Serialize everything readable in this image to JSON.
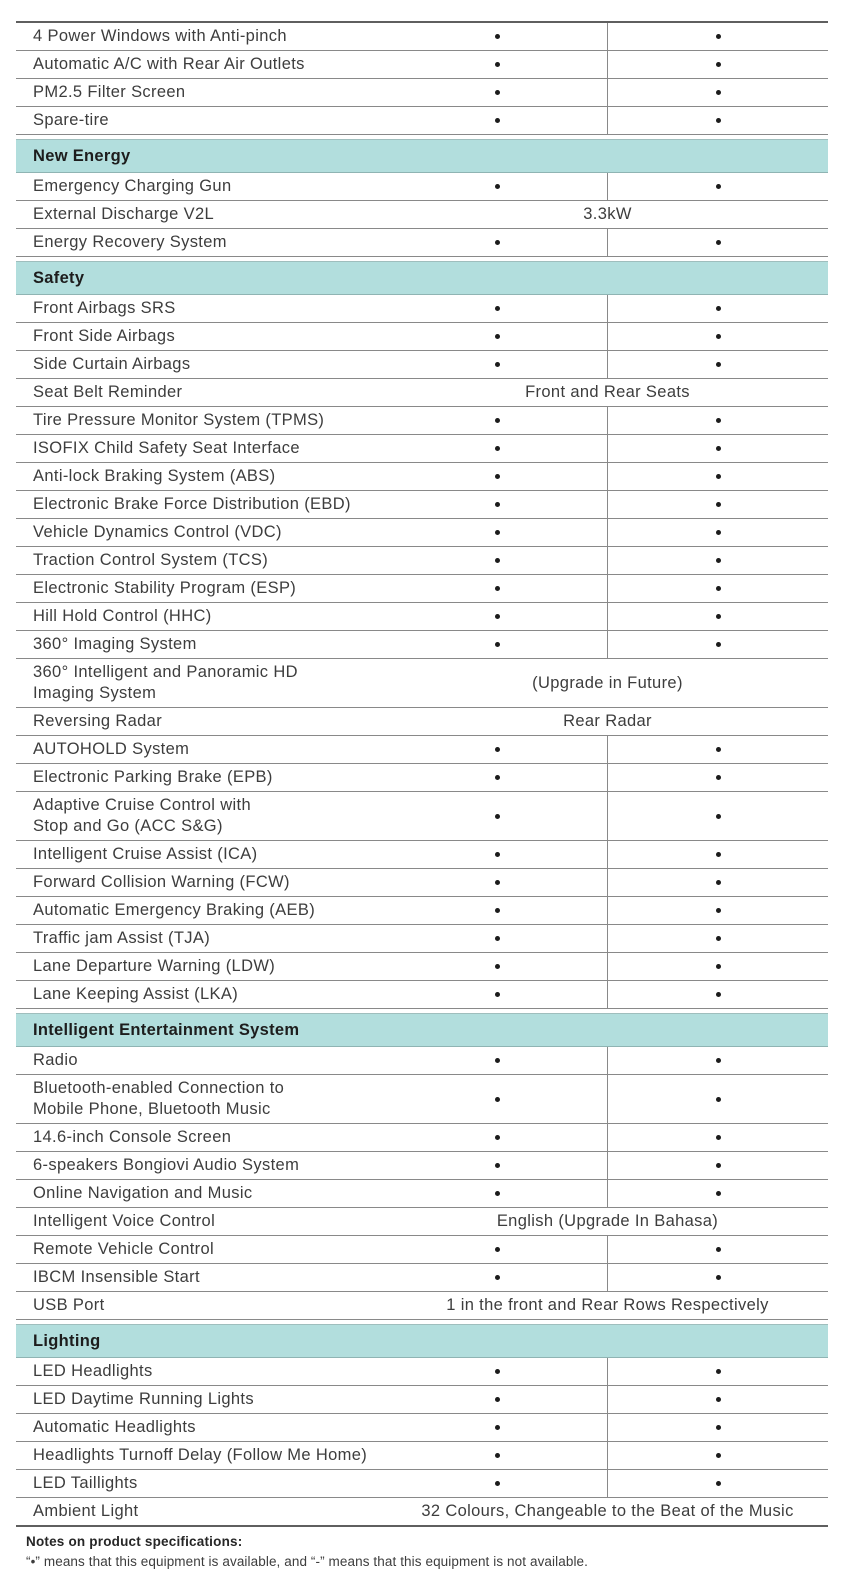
{
  "table": {
    "sections": [
      {
        "header": null,
        "rows": [
          {
            "feature": "4 Power Windows with Anti-pinch",
            "values": [
              "•",
              "•"
            ]
          },
          {
            "feature": "Automatic A/C with Rear Air Outlets",
            "values": [
              "•",
              "•"
            ]
          },
          {
            "feature": "PM2.5 Filter Screen",
            "values": [
              "•",
              "•"
            ]
          },
          {
            "feature": "Spare-tire",
            "values": [
              "•",
              "•"
            ]
          }
        ]
      },
      {
        "header": "New Energy",
        "rows": [
          {
            "feature": "Emergency Charging Gun",
            "values": [
              "•",
              "•"
            ]
          },
          {
            "feature": "External Discharge V2L",
            "span": "3.3kW"
          },
          {
            "feature": "Energy Recovery System",
            "values": [
              "•",
              "•"
            ]
          }
        ]
      },
      {
        "header": "Safety",
        "rows": [
          {
            "feature": "Front Airbags SRS",
            "values": [
              "•",
              "•"
            ]
          },
          {
            "feature": "Front Side Airbags",
            "values": [
              "•",
              "•"
            ]
          },
          {
            "feature": "Side Curtain Airbags",
            "values": [
              "•",
              "•"
            ]
          },
          {
            "feature": "Seat Belt Reminder",
            "span": "Front and Rear Seats"
          },
          {
            "feature": "Tire Pressure Monitor System (TPMS)",
            "values": [
              "•",
              "•"
            ]
          },
          {
            "feature": "ISOFIX Child Safety Seat Interface",
            "values": [
              "•",
              "•"
            ]
          },
          {
            "feature": "Anti-lock Braking System (ABS)",
            "values": [
              "•",
              "•"
            ]
          },
          {
            "feature": "Electronic Brake Force Distribution (EBD)",
            "values": [
              "•",
              "•"
            ]
          },
          {
            "feature": "Vehicle Dynamics Control (VDC)",
            "values": [
              "•",
              "•"
            ]
          },
          {
            "feature": "Traction Control System (TCS)",
            "values": [
              "•",
              "•"
            ]
          },
          {
            "feature": "Electronic Stability Program (ESP)",
            "values": [
              "•",
              "•"
            ]
          },
          {
            "feature": "Hill Hold Control (HHC)",
            "values": [
              "•",
              "•"
            ]
          },
          {
            "feature": "360° Imaging System",
            "values": [
              "•",
              "•"
            ]
          },
          {
            "feature": "360° Intelligent and Panoramic HD\nImaging System",
            "span": "(Upgrade in Future)"
          },
          {
            "feature": "Reversing Radar",
            "span": "Rear Radar"
          },
          {
            "feature": "AUTOHOLD System",
            "values": [
              "•",
              "•"
            ]
          },
          {
            "feature": "Electronic Parking Brake (EPB)",
            "values": [
              "•",
              "•"
            ]
          },
          {
            "feature": "Adaptive Cruise Control with\nStop and Go (ACC S&G)",
            "values": [
              "•",
              "•"
            ]
          },
          {
            "feature": "Intelligent Cruise Assist (ICA)",
            "values": [
              "•",
              "•"
            ]
          },
          {
            "feature": "Forward Collision Warning (FCW)",
            "values": [
              "•",
              "•"
            ]
          },
          {
            "feature": "Automatic Emergency Braking (AEB)",
            "values": [
              "•",
              "•"
            ]
          },
          {
            "feature": "Traffic jam Assist (TJA)",
            "values": [
              "•",
              "•"
            ]
          },
          {
            "feature": "Lane Departure Warning (LDW)",
            "values": [
              "•",
              "•"
            ]
          },
          {
            "feature": "Lane Keeping Assist (LKA)",
            "values": [
              "•",
              "•"
            ]
          }
        ]
      },
      {
        "header": "Intelligent Entertainment System",
        "rows": [
          {
            "feature": "Radio",
            "values": [
              "•",
              "•"
            ]
          },
          {
            "feature": "Bluetooth-enabled Connection to\nMobile Phone, Bluetooth Music",
            "values": [
              "•",
              "•"
            ]
          },
          {
            "feature": "14.6-inch Console Screen",
            "values": [
              "•",
              "•"
            ]
          },
          {
            "feature": "6-speakers Bongiovi Audio System",
            "values": [
              "•",
              "•"
            ]
          },
          {
            "feature": "Online Navigation and Music",
            "values": [
              "•",
              "•"
            ]
          },
          {
            "feature": "Intelligent Voice Control",
            "span": "English (Upgrade In Bahasa)"
          },
          {
            "feature": "Remote Vehicle Control",
            "values": [
              "•",
              "•"
            ]
          },
          {
            "feature": "IBCM Insensible Start",
            "values": [
              "•",
              "•"
            ]
          },
          {
            "feature": "USB Port",
            "span": "1 in the front and Rear Rows Respectively"
          }
        ]
      },
      {
        "header": "Lighting",
        "rows": [
          {
            "feature": "LED Headlights",
            "values": [
              "•",
              "•"
            ]
          },
          {
            "feature": "LED Daytime Running Lights",
            "values": [
              "•",
              "•"
            ]
          },
          {
            "feature": "Automatic Headlights",
            "values": [
              "•",
              "•"
            ]
          },
          {
            "feature": "Headlights Turnoff Delay (Follow Me Home)",
            "values": [
              "•",
              "•"
            ]
          },
          {
            "feature": "LED Taillights",
            "values": [
              "•",
              "•"
            ]
          },
          {
            "feature": "Ambient Light",
            "span": "32 Colours, Changeable to the Beat of the Music"
          }
        ]
      }
    ]
  },
  "notes": {
    "title": "Notes on product specifications:",
    "body": "“•” means that this equipment is available, and “-” means that this equipment is not available."
  },
  "colors": {
    "section_header_bg": "#b2dedd",
    "text": "#3d3d3d",
    "border": "#898989"
  }
}
